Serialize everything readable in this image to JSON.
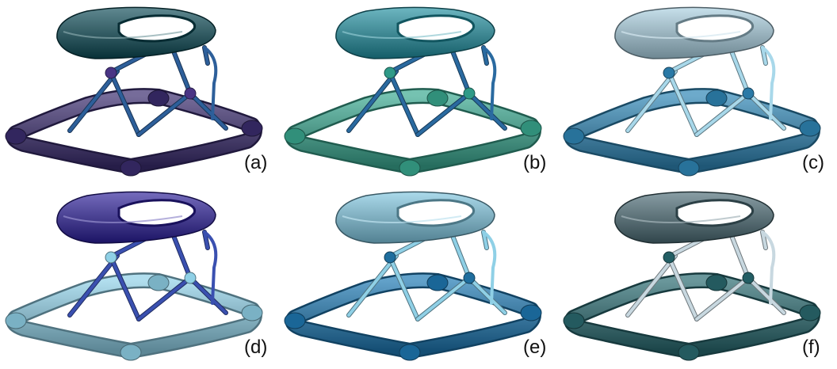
{
  "panels": [
    {
      "label": "(a)",
      "colors": {
        "tray": "#0b4a55",
        "base": "#3b2d6e",
        "legs": "#2d5f9a",
        "joints": "#4a3585"
      }
    },
    {
      "label": "(b)",
      "colors": {
        "tray": "#1e8fa0",
        "base": "#3aa890",
        "legs": "#2a6aa0",
        "joints": "#2f9a88"
      }
    },
    {
      "label": "(c)",
      "colors": {
        "tray": "#a9cfe0",
        "base": "#2f86b5",
        "legs": "#a8d8ea",
        "joints": "#2a79a6"
      }
    },
    {
      "label": "(d)",
      "colors": {
        "tray": "#2a1d9a",
        "base": "#8fd0e6",
        "legs": "#3a50b0",
        "joints": "#8fd0e6"
      }
    },
    {
      "label": "(e)",
      "colors": {
        "tray": "#7ec6e0",
        "base": "#1f78b2",
        "legs": "#8fd0e6",
        "joints": "#1f6e9e"
      }
    },
    {
      "label": "(f)",
      "colors": {
        "tray": "#4a6a74",
        "base": "#2a6a70",
        "legs": "#c8d8e0",
        "joints": "#235e64"
      }
    }
  ]
}
